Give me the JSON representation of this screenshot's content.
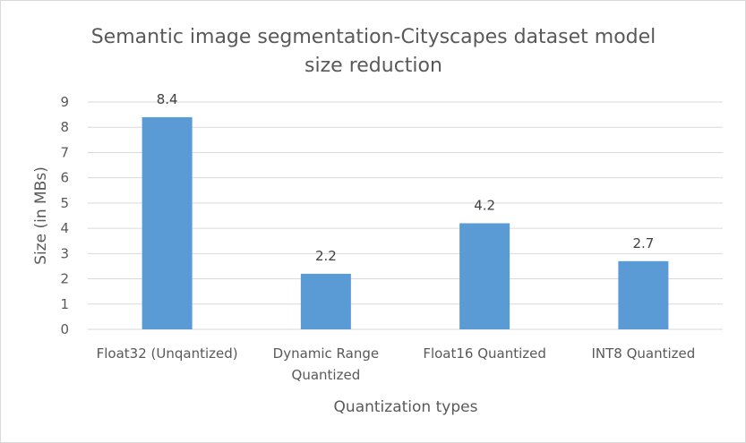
{
  "chart_data": {
    "type": "bar",
    "title_lines": [
      "Semantic image segmentation-Cityscapes dataset model",
      "size reduction"
    ],
    "xlabel": "Quantization types",
    "ylabel": "Size (in MBs)",
    "categories": [
      [
        "Float32 (Unqantized)"
      ],
      [
        "Dynamic Range",
        "Quantized"
      ],
      [
        "Float16 Quantized"
      ],
      [
        "INT8 Quantized"
      ]
    ],
    "values": [
      8.4,
      2.2,
      4.2,
      2.7
    ],
    "value_labels": [
      "8.4",
      "2.2",
      "4.2",
      "2.7"
    ],
    "ylim": [
      0,
      9
    ],
    "yticks": [
      0,
      1,
      2,
      3,
      4,
      5,
      6,
      7,
      8,
      9
    ],
    "grid": true,
    "legend": "none",
    "colors": {
      "bar": "#5b9bd5",
      "grid": "#d9d9d9",
      "axis": "#d9d9d9"
    }
  }
}
